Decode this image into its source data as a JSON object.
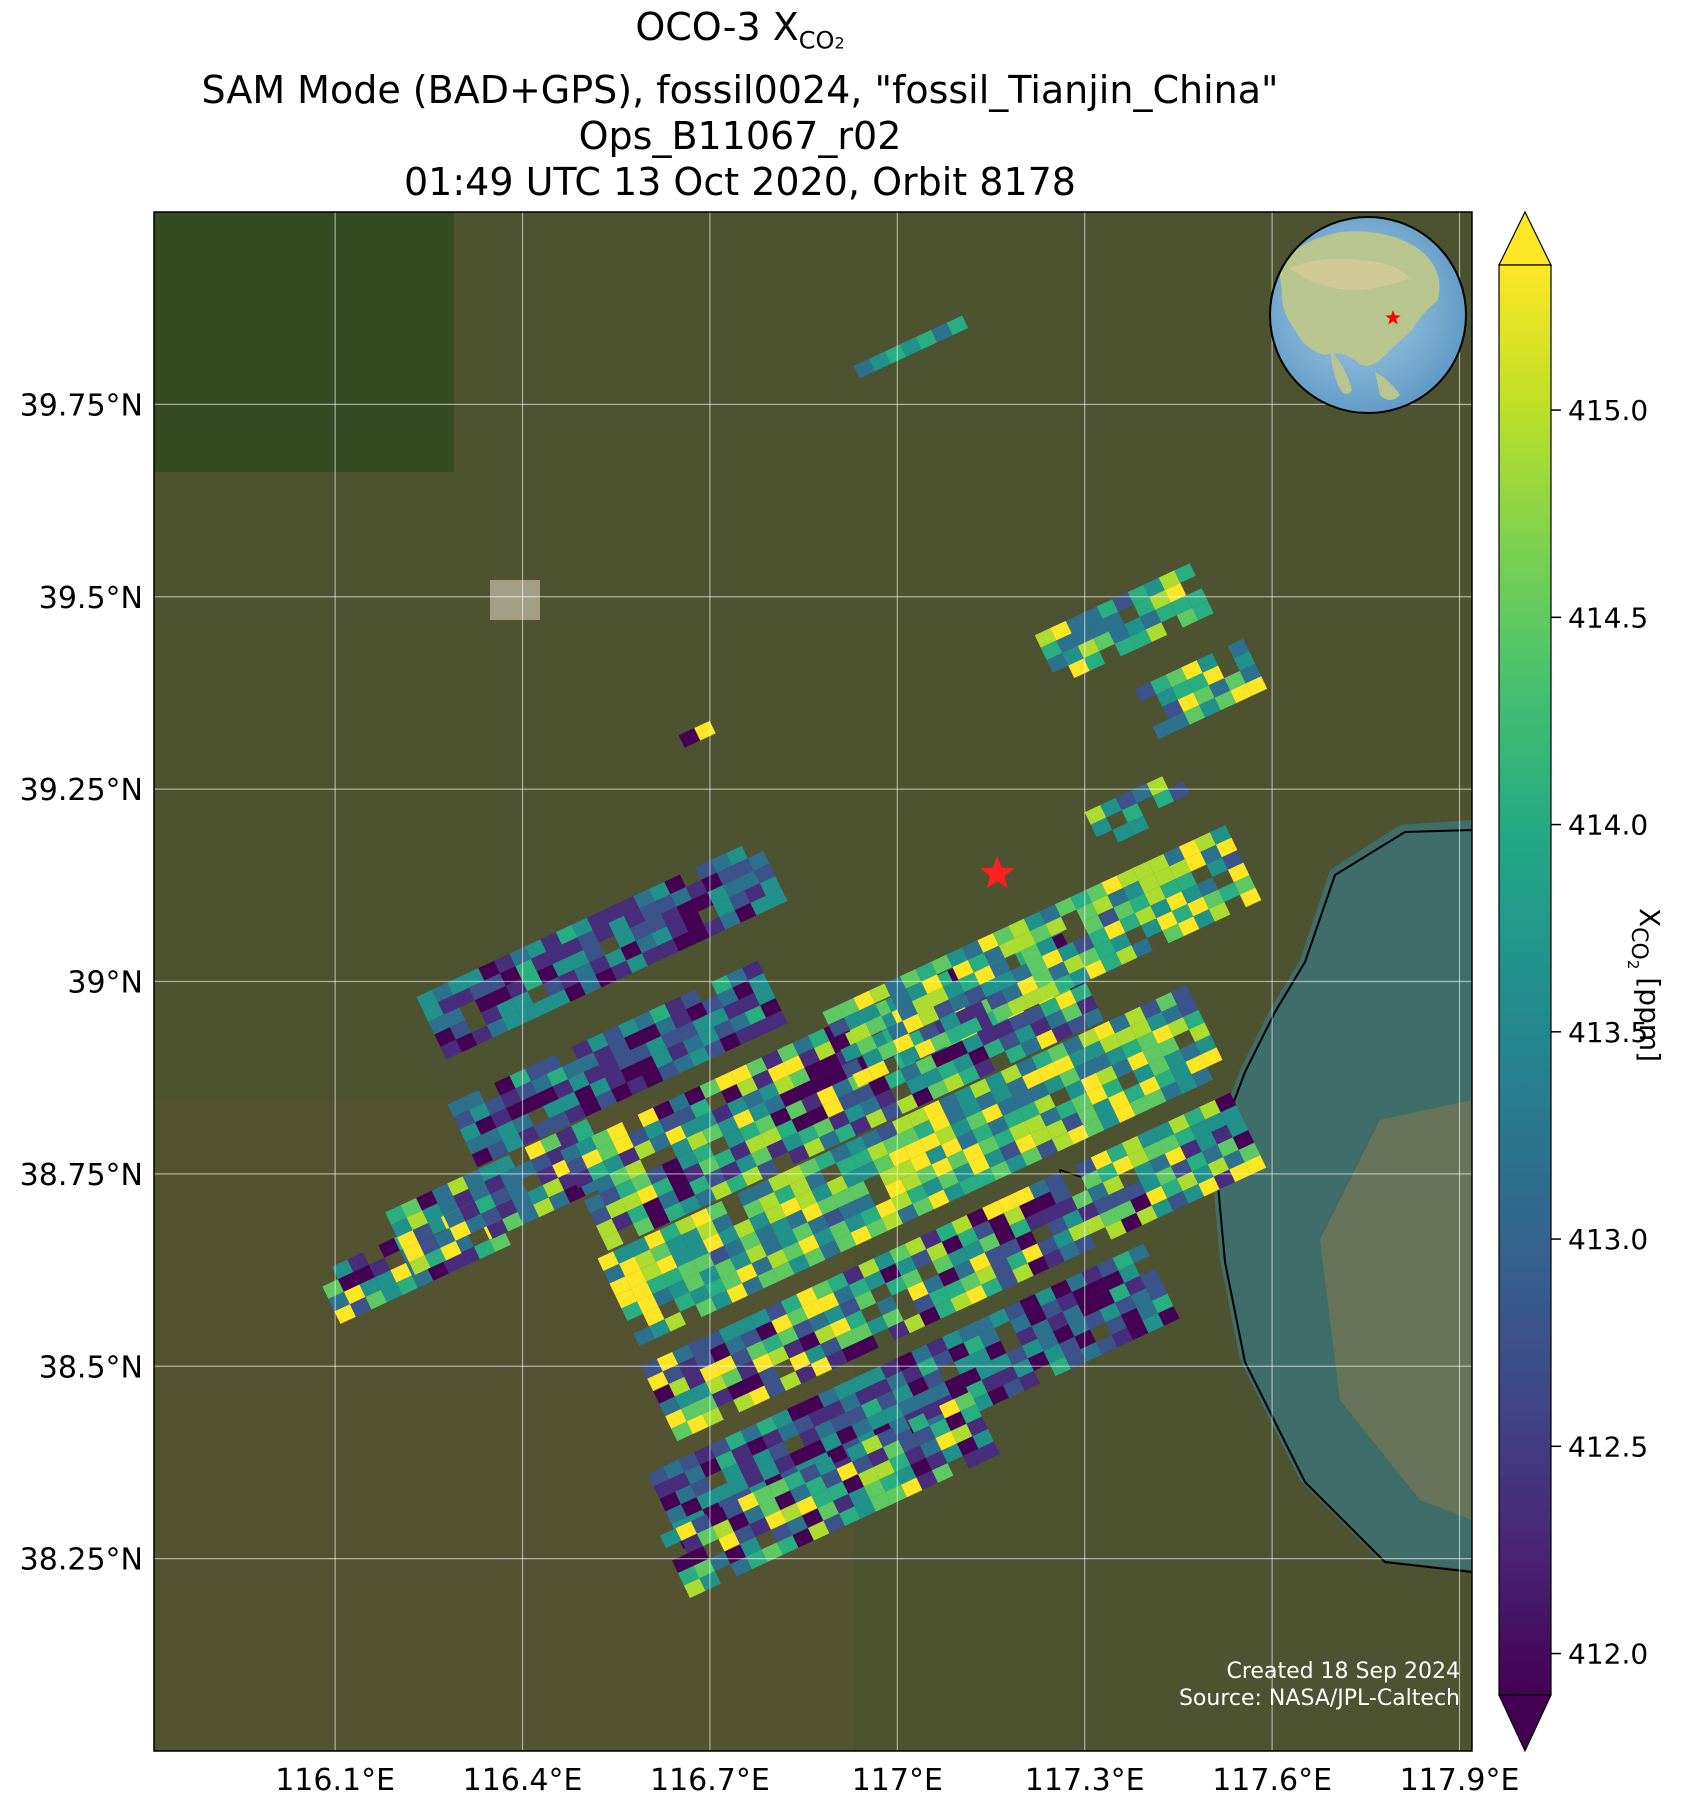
{
  "title": {
    "line1_main": "OCO-3 X",
    "line1_sub": "CO",
    "line1_subsub": "2",
    "line2": "SAM Mode (BAD+GPS), fossil0024, \"fossil_Tianjin_China\"",
    "line3": "Ops_B11067_r02",
    "line4": "01:49 UTC 13 Oct 2020, Orbit 8178"
  },
  "map": {
    "lon_ticks": [
      "116.1°E",
      "116.4°E",
      "116.7°E",
      "117°E",
      "117.3°E",
      "117.6°E",
      "117.9°E"
    ],
    "lat_ticks": [
      "39.75°N",
      "39.5°N",
      "39.25°N",
      "39°N",
      "38.75°N",
      "38.5°N",
      "38.25°N"
    ],
    "lon_values": [
      116.1,
      116.4,
      116.7,
      117.0,
      117.3,
      117.6,
      117.9
    ],
    "lat_values": [
      39.75,
      39.5,
      39.25,
      39.0,
      38.75,
      38.5,
      38.25
    ],
    "lon_range": [
      115.81,
      117.92
    ],
    "lat_range": [
      38.0,
      40.0
    ],
    "target_marker": {
      "lon": 117.16,
      "lat": 39.14,
      "color": "#ff2020"
    },
    "credit_line1": "Created 18 Sep 2024",
    "credit_line2": "Source: NASA/JPL-Caltech",
    "inset_globe": {
      "marker_color": "#ff0000"
    }
  },
  "colorbar": {
    "label_main": "X",
    "label_sub": "CO",
    "label_subsub": "2",
    "label_units": "[ppm]",
    "ticks": [
      "412.0",
      "412.5",
      "413.0",
      "413.5",
      "414.0",
      "414.5",
      "415.0"
    ],
    "tick_values": [
      412.0,
      412.5,
      413.0,
      413.5,
      414.0,
      414.5,
      415.0
    ],
    "range": [
      411.9,
      415.35
    ],
    "colormap": "viridis",
    "extend": "both"
  }
}
